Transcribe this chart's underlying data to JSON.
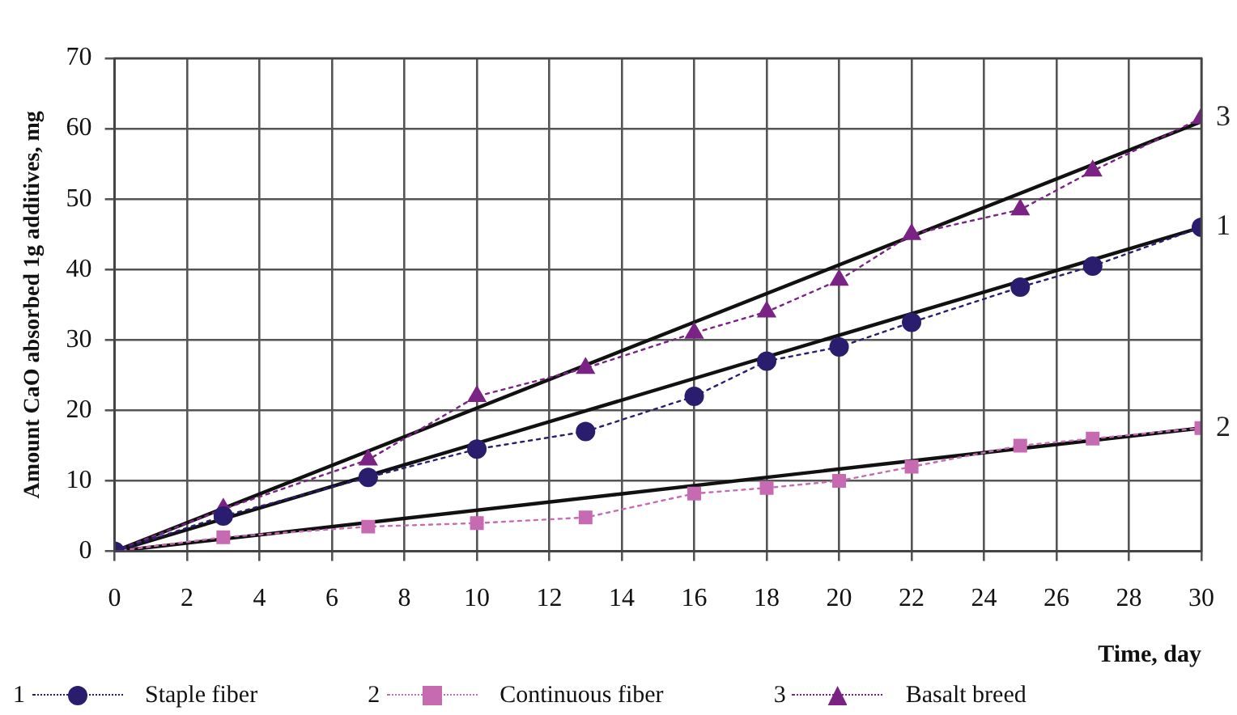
{
  "chart_data": {
    "type": "line",
    "xlabel": "Time, day",
    "ylabel": "Amount CaO absorbed 1g additives, mg",
    "xlim": [
      0,
      30
    ],
    "xticks": [
      0,
      2,
      4,
      6,
      8,
      10,
      12,
      14,
      16,
      18,
      20,
      22,
      24,
      26,
      28,
      30
    ],
    "ylim": [
      0,
      70
    ],
    "yticks": [
      0,
      10,
      20,
      30,
      40,
      50,
      60,
      70
    ],
    "grid": true,
    "legend": "bottom",
    "series": [
      {
        "name": "Staple fiber",
        "color": "#2b1d6e",
        "marker": "circle",
        "line_style": "dotted",
        "x": [
          0,
          3,
          7,
          10,
          13,
          16,
          18,
          20,
          22,
          25,
          27,
          30
        ],
        "values": [
          0,
          5,
          10.5,
          14.5,
          17,
          22,
          27,
          29,
          32.5,
          37.5,
          40.5,
          46
        ]
      },
      {
        "name": "Continuous fiber",
        "color": "#c66bb2",
        "marker": "square",
        "line_style": "dotted",
        "x": [
          0,
          3,
          7,
          10,
          13,
          16,
          18,
          20,
          22,
          25,
          27,
          30
        ],
        "values": [
          0,
          2,
          3.5,
          4,
          4.8,
          8.2,
          9,
          10,
          12,
          15,
          16,
          17.5
        ]
      },
      {
        "name": "Basalt breed",
        "color": "#7a2384",
        "marker": "triangle",
        "line_style": "dotted",
        "x": [
          0,
          3,
          7,
          10,
          13,
          16,
          18,
          20,
          22,
          25,
          27,
          30
        ],
        "values": [
          0,
          6,
          13,
          22,
          26,
          31,
          34,
          38.5,
          45,
          48.5,
          54,
          61.5
        ]
      },
      {
        "type": "line",
        "color": "#111111",
        "marker": "none",
        "line_style": "solid",
        "x": [
          0,
          30
        ],
        "values": [
          0,
          46
        ]
      },
      {
        "type": "line",
        "color": "#111111",
        "marker": "none",
        "line_style": "solid",
        "x": [
          0,
          30
        ],
        "values": [
          0,
          17.5
        ]
      },
      {
        "type": "line",
        "color": "#111111",
        "marker": "none",
        "line_style": "solid",
        "x": [
          0,
          30
        ],
        "values": [
          0,
          61
        ]
      }
    ],
    "annotations": [
      "1",
      "2",
      "3"
    ]
  }
}
